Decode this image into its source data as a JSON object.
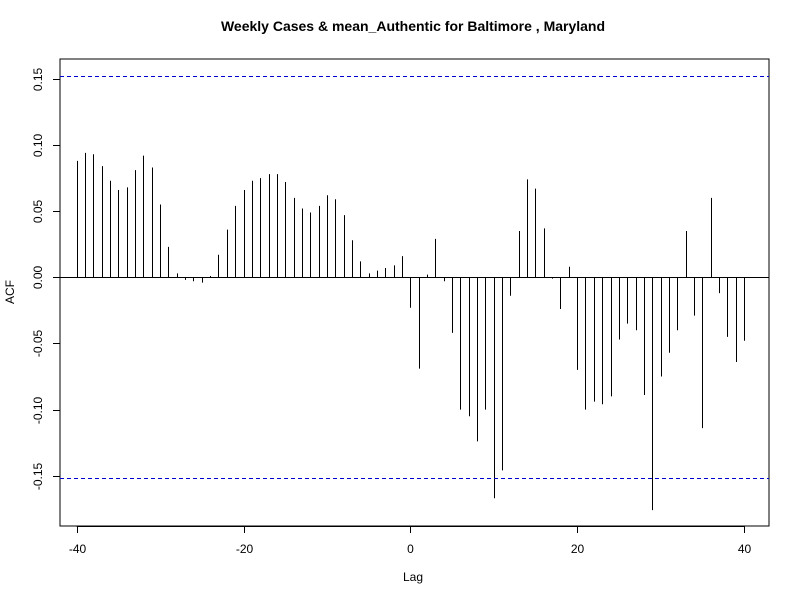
{
  "chart_data": {
    "type": "bar",
    "title": "Weekly Cases & mean_Authentic for Baltimore , Maryland",
    "xlabel": "Lag",
    "ylabel": "ACF",
    "xlim": [
      -42,
      43
    ],
    "ylim": [
      -0.188,
      0.165
    ],
    "x_ticks": [
      -40,
      -20,
      0,
      20,
      40
    ],
    "x_tick_labels": [
      "-40",
      "-20",
      "0",
      "20",
      "40"
    ],
    "y_ticks": [
      -0.15,
      -0.1,
      -0.05,
      0.0,
      0.05,
      0.1,
      0.15
    ],
    "y_tick_labels": [
      "-0.15",
      "-0.10",
      "-0.05",
      "0.00",
      "0.05",
      "0.10",
      "0.15"
    ],
    "confidence_bound": 0.152,
    "colors": {
      "bars": "#000000",
      "confidence": "#0000cc",
      "zero_line": "#000000"
    },
    "lags": [
      -40,
      -39,
      -38,
      -37,
      -36,
      -35,
      -34,
      -33,
      -32,
      -31,
      -30,
      -29,
      -28,
      -27,
      -26,
      -25,
      -24,
      -23,
      -22,
      -21,
      -20,
      -19,
      -18,
      -17,
      -16,
      -15,
      -14,
      -13,
      -12,
      -11,
      -10,
      -9,
      -8,
      -7,
      -6,
      -5,
      -4,
      -3,
      -2,
      -1,
      0,
      1,
      2,
      3,
      4,
      5,
      6,
      7,
      8,
      9,
      10,
      11,
      12,
      13,
      14,
      15,
      16,
      17,
      18,
      19,
      20,
      21,
      22,
      23,
      24,
      25,
      26,
      27,
      28,
      29,
      30,
      31,
      32,
      33,
      34,
      35,
      36,
      37,
      38,
      39,
      40
    ],
    "values": [
      0.088,
      0.094,
      0.093,
      0.084,
      0.073,
      0.066,
      0.068,
      0.081,
      0.092,
      0.083,
      0.055,
      0.023,
      0.003,
      -0.002,
      -0.003,
      -0.004,
      0.001,
      0.017,
      0.036,
      0.054,
      0.066,
      0.073,
      0.075,
      0.078,
      0.078,
      0.072,
      0.06,
      0.052,
      0.049,
      0.054,
      0.062,
      0.059,
      0.047,
      0.028,
      0.012,
      0.003,
      0.005,
      0.007,
      0.009,
      0.016,
      -0.023,
      -0.069,
      0.002,
      0.029,
      -0.003,
      -0.042,
      -0.1,
      -0.105,
      -0.124,
      -0.1,
      -0.167,
      -0.146,
      -0.014,
      0.035,
      0.074,
      0.067,
      0.037,
      -0.001,
      -0.024,
      0.008,
      -0.07,
      -0.1,
      -0.094,
      -0.096,
      -0.09,
      -0.047,
      -0.035,
      -0.04,
      -0.089,
      -0.176,
      -0.075,
      -0.057,
      -0.04,
      0.035,
      -0.029,
      -0.114,
      0.06,
      -0.012,
      -0.045,
      -0.064,
      -0.048
    ]
  }
}
